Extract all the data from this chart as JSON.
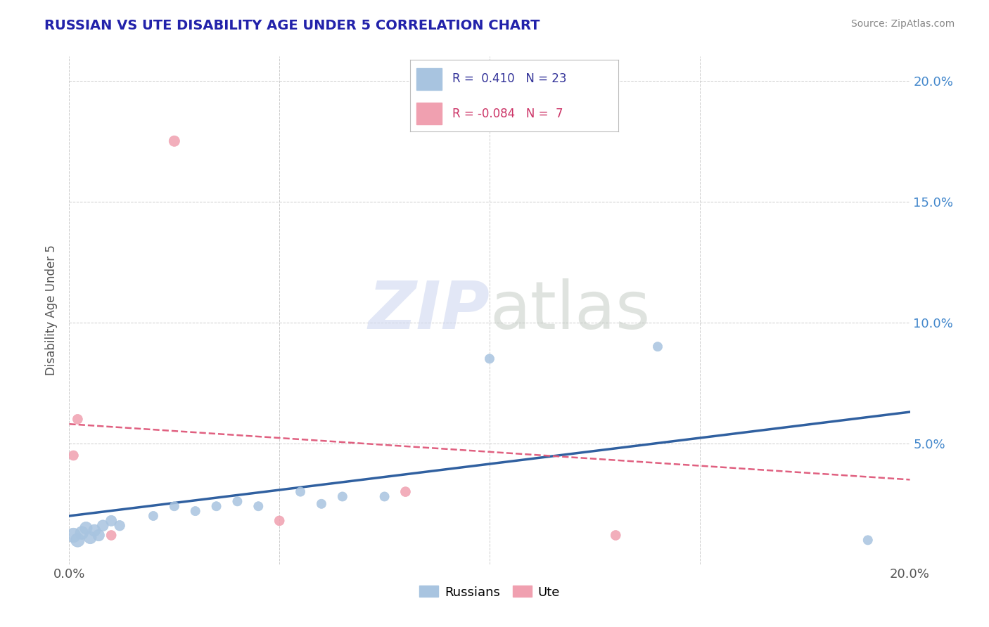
{
  "title": "RUSSIAN VS UTE DISABILITY AGE UNDER 5 CORRELATION CHART",
  "source": "Source: ZipAtlas.com",
  "ylabel_label": "Disability Age Under 5",
  "xlim": [
    0.0,
    0.2
  ],
  "ylim": [
    0.0,
    0.21
  ],
  "xticks": [
    0.0,
    0.05,
    0.1,
    0.15,
    0.2
  ],
  "yticks": [
    0.0,
    0.05,
    0.1,
    0.15,
    0.2
  ],
  "russian_color": "#A8C4E0",
  "russian_line_color": "#3060A0",
  "ute_color": "#F0A0B0",
  "ute_line_color": "#E06080",
  "russian_R": 0.41,
  "russian_N": 23,
  "ute_R": -0.084,
  "ute_N": 7,
  "watermark_zip": "ZIP",
  "watermark_atlas": "atlas",
  "background_color": "#FFFFFF",
  "title_color": "#2222AA",
  "yaxis_color": "#4488CC",
  "russian_points": [
    [
      0.001,
      0.012
    ],
    [
      0.002,
      0.01
    ],
    [
      0.003,
      0.013
    ],
    [
      0.004,
      0.015
    ],
    [
      0.005,
      0.011
    ],
    [
      0.006,
      0.014
    ],
    [
      0.007,
      0.012
    ],
    [
      0.008,
      0.016
    ],
    [
      0.01,
      0.018
    ],
    [
      0.012,
      0.016
    ],
    [
      0.02,
      0.02
    ],
    [
      0.025,
      0.024
    ],
    [
      0.03,
      0.022
    ],
    [
      0.035,
      0.024
    ],
    [
      0.04,
      0.026
    ],
    [
      0.045,
      0.024
    ],
    [
      0.055,
      0.03
    ],
    [
      0.06,
      0.025
    ],
    [
      0.065,
      0.028
    ],
    [
      0.075,
      0.028
    ],
    [
      0.1,
      0.085
    ],
    [
      0.14,
      0.09
    ],
    [
      0.19,
      0.01
    ]
  ],
  "russian_sizes": [
    220,
    200,
    180,
    160,
    160,
    150,
    140,
    130,
    120,
    110,
    90,
    90,
    90,
    90,
    90,
    90,
    90,
    90,
    90,
    90,
    90,
    90,
    90
  ],
  "ute_points": [
    [
      0.001,
      0.045
    ],
    [
      0.002,
      0.06
    ],
    [
      0.01,
      0.012
    ],
    [
      0.025,
      0.175
    ],
    [
      0.05,
      0.018
    ],
    [
      0.08,
      0.03
    ],
    [
      0.13,
      0.012
    ]
  ],
  "ute_sizes": [
    100,
    100,
    100,
    120,
    100,
    100,
    100
  ],
  "russian_line_x": [
    0.0,
    0.2
  ],
  "russian_line_y": [
    0.02,
    0.063
  ],
  "ute_line_x": [
    0.0,
    0.2
  ],
  "ute_line_y": [
    0.058,
    0.035
  ]
}
